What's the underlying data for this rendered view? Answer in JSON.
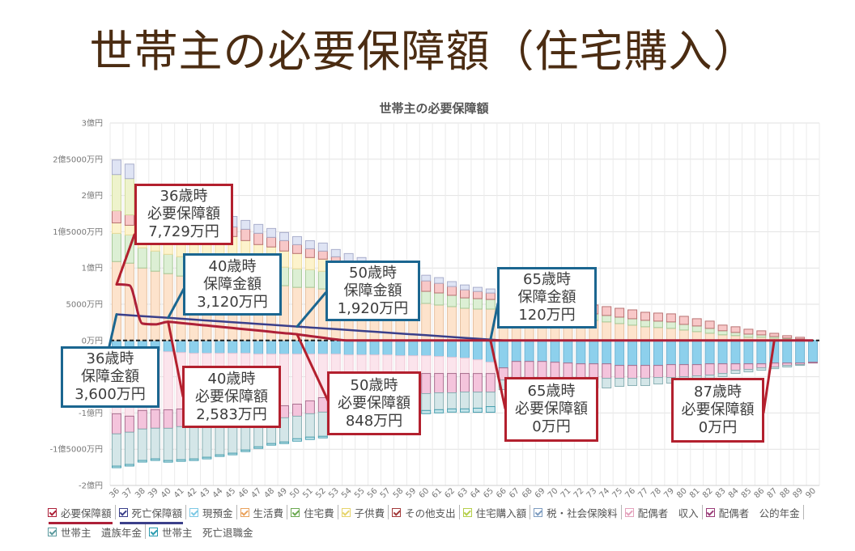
{
  "page": {
    "title": "世帯主の必要保障額（住宅購入）"
  },
  "chart_data": {
    "type": "bar",
    "stacked": true,
    "title": "世帯主の必要保障額",
    "xlabel": "",
    "ylabel": "",
    "unit": "万円",
    "ylim": [
      -20000,
      30000
    ],
    "tick_interval": 5000,
    "grid": true,
    "legend": {
      "placement": "bottom-left"
    },
    "y_ticks": [
      {
        "value": 30000,
        "label": "3億円"
      },
      {
        "value": 25000,
        "label": "2億5000万円"
      },
      {
        "value": 20000,
        "label": "2億円"
      },
      {
        "value": 15000,
        "label": "1億5000万円"
      },
      {
        "value": 10000,
        "label": "1億円"
      },
      {
        "value": 5000,
        "label": "5000万円"
      },
      {
        "value": 0,
        "label": "0万円"
      },
      {
        "value": -10000,
        "label": "-1億円"
      },
      {
        "value": -15000,
        "label": "-1億5000万円"
      },
      {
        "value": -20000,
        "label": "-2億円"
      }
    ],
    "categories": [
      "36",
      "37",
      "38",
      "39",
      "40",
      "41",
      "42",
      "43",
      "44",
      "45",
      "46",
      "47",
      "48",
      "49",
      "50",
      "51",
      "52",
      "53",
      "54",
      "55",
      "56",
      "57",
      "58",
      "59",
      "60",
      "61",
      "62",
      "63",
      "64",
      "65",
      "66",
      "67",
      "68",
      "69",
      "70",
      "71",
      "72",
      "73",
      "74",
      "75",
      "76",
      "77",
      "78",
      "79",
      "80",
      "81",
      "82",
      "83",
      "84",
      "85",
      "86",
      "87",
      "88",
      "89",
      "90"
    ],
    "series": [
      {
        "name": "必要保障額",
        "kind": "line",
        "smooth": true,
        "color": "#ad2038",
        "values": [
          7729,
          7600,
          2330,
          2220,
          2583,
          2410,
          2240,
          2060,
          1890,
          1720,
          1540,
          1370,
          1190,
          1020,
          848,
          600,
          380,
          150,
          0,
          0,
          0,
          0,
          0,
          0,
          0,
          0,
          0,
          0,
          0,
          0,
          0,
          0,
          0,
          0,
          0,
          0,
          0,
          0,
          0,
          0,
          0,
          0,
          0,
          0,
          0,
          0,
          0,
          0,
          0,
          0,
          0,
          0,
          0,
          0,
          0
        ]
      },
      {
        "name": "死亡保障額",
        "kind": "line",
        "smooth": false,
        "color": "#3a3f8a",
        "values": [
          3600,
          3480,
          3360,
          3240,
          3120,
          3000,
          2880,
          2760,
          2640,
          2520,
          2400,
          2280,
          2160,
          2040,
          1920,
          1800,
          1680,
          1560,
          1440,
          1320,
          1200,
          1080,
          960,
          840,
          720,
          600,
          480,
          360,
          240,
          120,
          0,
          0,
          0,
          0,
          0,
          0,
          0,
          0,
          0,
          0,
          0,
          0,
          0,
          0,
          0,
          0,
          0,
          0,
          0,
          0,
          0,
          0,
          0,
          0,
          0
        ]
      },
      {
        "name": "現預金",
        "kind": "bar",
        "color": "#7cc8e4",
        "fill": "#8dd0ec",
        "stroke": "#72b4d2",
        "values": [
          -1110,
          -1220,
          -1330,
          -1440,
          -1560,
          -1670,
          -1780,
          -1780,
          -1780,
          -1780,
          -1780,
          -1890,
          -1890,
          -1890,
          -1890,
          -1890,
          -1890,
          -1890,
          -2000,
          -2000,
          -2000,
          -2000,
          -2110,
          -2110,
          -2110,
          -2220,
          -2330,
          -2440,
          -2670,
          -3000,
          -3780,
          -2890,
          -2890,
          -2890,
          -3000,
          -3110,
          -3220,
          -3220,
          -3220,
          -3440,
          -3440,
          -3440,
          -3440,
          -3330,
          -3330,
          -3330,
          -3220,
          -3220,
          -3220,
          -3220,
          -3220,
          -3110,
          -3110,
          -3110,
          -3000
        ]
      },
      {
        "name": "生活費",
        "kind": "bar",
        "color": "#e9a15a",
        "fill": "#fde3cc",
        "stroke": "#e6c0a0",
        "values": [
          10890,
          10670,
          10000,
          9560,
          9220,
          8890,
          8440,
          8220,
          8110,
          7890,
          7890,
          7670,
          7670,
          7560,
          7330,
          7330,
          7110,
          6670,
          6440,
          6330,
          6110,
          6110,
          5890,
          5440,
          5110,
          4890,
          4670,
          4440,
          4330,
          4330,
          4220,
          4110,
          3890,
          3780,
          3440,
          3220,
          3000,
          2780,
          2560,
          2330,
          2110,
          1890,
          1780,
          1670,
          1440,
          1220,
          1000,
          780,
          670,
          440,
          440,
          330,
          220,
          220,
          0
        ]
      },
      {
        "name": "住宅費",
        "kind": "bar",
        "color": "#6aa84f",
        "fill": "#dcefd4",
        "stroke": "#a6c896",
        "values": [
          3890,
          3890,
          2780,
          2780,
          2670,
          2670,
          2670,
          2670,
          2560,
          2560,
          2560,
          2670,
          2670,
          2560,
          2560,
          2440,
          2440,
          2330,
          2330,
          2220,
          2110,
          2000,
          1890,
          1780,
          1670,
          1670,
          1560,
          1440,
          1440,
          1330,
          1220,
          1110,
          1110,
          1000,
          1000,
          1000,
          890,
          890,
          890,
          890,
          890,
          890,
          890,
          890,
          780,
          780,
          670,
          560,
          440,
          440,
          330,
          220,
          110,
          0,
          0
        ]
      },
      {
        "name": "子供費",
        "kind": "bar",
        "color": "#e6d46a",
        "fill": "#fdf3cc",
        "stroke": "#eedc9c",
        "values": [
          1440,
          1330,
          3330,
          3440,
          3560,
          3670,
          3780,
          3890,
          3890,
          3890,
          3330,
          2890,
          2560,
          2220,
          2110,
          1670,
          1670,
          1330,
          1000,
          670,
          440,
          220,
          110,
          0,
          0,
          0,
          0,
          0,
          0,
          0,
          0,
          0,
          0,
          0,
          0,
          0,
          0,
          0,
          0,
          0,
          0,
          0,
          0,
          0,
          0,
          0,
          0,
          0,
          0,
          0,
          0,
          0,
          0,
          0,
          0
        ]
      },
      {
        "name": "その他支出",
        "kind": "bar",
        "color": "#a33a3a",
        "fill": "#f8c8c8",
        "stroke": "#b87272",
        "values": [
          1670,
          1440,
          1440,
          1440,
          1440,
          1440,
          1440,
          1330,
          1330,
          1330,
          1560,
          1560,
          1330,
          1440,
          1220,
          1220,
          1110,
          1220,
          1220,
          1220,
          1330,
          1330,
          1330,
          1440,
          1440,
          1330,
          1220,
          1110,
          1000,
          890,
          1330,
          1330,
          1330,
          1330,
          1330,
          1220,
          1220,
          1220,
          1220,
          1220,
          1220,
          1110,
          1110,
          1110,
          1110,
          1000,
          1000,
          780,
          780,
          670,
          560,
          440,
          330,
          220,
          0
        ]
      },
      {
        "name": "住宅購入額",
        "kind": "bar",
        "color": "#b5cf4a",
        "fill": "#eef3cc",
        "stroke": "#cfdc9a",
        "values": [
          5000,
          5000,
          0,
          0,
          0,
          0,
          0,
          0,
          0,
          0,
          0,
          0,
          0,
          0,
          0,
          0,
          0,
          0,
          0,
          0,
          0,
          0,
          0,
          0,
          0,
          0,
          0,
          0,
          0,
          0,
          0,
          0,
          0,
          0,
          0,
          0,
          0,
          0,
          0,
          0,
          0,
          0,
          0,
          0,
          0,
          0,
          0,
          0,
          0,
          0,
          0,
          0,
          0,
          0,
          0
        ]
      },
      {
        "name": "税・社会保険料",
        "kind": "bar",
        "color": "#7d9cc0",
        "fill": "#dfe4f4",
        "stroke": "#a9aecb",
        "values": [
          2000,
          2000,
          1440,
          1440,
          1440,
          1440,
          1440,
          1440,
          1440,
          1440,
          1220,
          1220,
          1220,
          1110,
          1110,
          1110,
          1110,
          1000,
          1000,
          1000,
          1000,
          890,
          890,
          890,
          780,
          780,
          670,
          670,
          560,
          560,
          0,
          0,
          0,
          0,
          0,
          0,
          0,
          0,
          0,
          0,
          0,
          0,
          0,
          0,
          0,
          0,
          0,
          0,
          0,
          0,
          0,
          0,
          0,
          0,
          0
        ]
      },
      {
        "name": "配偶者　収入",
        "kind": "bar",
        "color": "#e4a2bc",
        "fill": "#fbe4ec",
        "stroke": "#f0c8d6",
        "values": [
          -9000,
          -9220,
          -8330,
          -8110,
          -8000,
          -7780,
          -7670,
          -7560,
          -7560,
          -7440,
          -7330,
          -7220,
          -7110,
          -7110,
          -6890,
          -6440,
          -6000,
          -5440,
          -4780,
          -4330,
          -3890,
          -3440,
          -3000,
          -2670,
          -2440,
          -2330,
          -2220,
          -2110,
          -1890,
          -1560,
          0,
          0,
          0,
          0,
          0,
          0,
          0,
          0,
          0,
          0,
          0,
          0,
          0,
          0,
          0,
          0,
          0,
          0,
          0,
          0,
          0,
          0,
          0,
          0,
          0
        ]
      },
      {
        "name": "配偶者　公的年金",
        "kind": "bar",
        "color": "#9a3c78",
        "fill": "#f4c4dc",
        "stroke": "#a86e8e",
        "values": [
          -2780,
          -2220,
          -2560,
          -2560,
          -2560,
          -2440,
          -2330,
          -2330,
          -2220,
          -2220,
          -2110,
          -1890,
          -1780,
          -1670,
          -1670,
          -1780,
          -2000,
          -2110,
          -2220,
          -2330,
          -2440,
          -2560,
          -2560,
          -2670,
          -2780,
          -2670,
          -2670,
          -2560,
          -2560,
          -2560,
          -1670,
          -2330,
          -2330,
          -2330,
          -2220,
          -2110,
          -2000,
          -2110,
          -2000,
          -1780,
          -1780,
          -1780,
          -1670,
          -1780,
          -1670,
          -1560,
          -1560,
          -1330,
          -890,
          -780,
          -560,
          -560,
          -330,
          -220,
          -110
        ]
      },
      {
        "name": "世帯主　遺族年金",
        "kind": "bar",
        "color": "#5b9a9e",
        "fill": "#d4e6e8",
        "stroke": "#8ab0b4",
        "values": [
          -4440,
          -4440,
          -4330,
          -4220,
          -4440,
          -4560,
          -4560,
          -4440,
          -4220,
          -4110,
          -3890,
          -3670,
          -3440,
          -3330,
          -3110,
          -3220,
          -3330,
          -3220,
          -3110,
          -2890,
          -2670,
          -2560,
          -2560,
          -2440,
          -2330,
          -2330,
          -2220,
          -2330,
          -2220,
          -2000,
          -1330,
          -1440,
          -1440,
          -1440,
          -1330,
          -1330,
          -1330,
          -1220,
          -1330,
          -1110,
          -1000,
          -1000,
          -890,
          -780,
          -670,
          -560,
          -440,
          -440,
          -440,
          -330,
          -330,
          -220,
          -220,
          -110,
          0
        ]
      },
      {
        "name": "世帯主　死亡退職金",
        "kind": "bar",
        "color": "#2a9cb0",
        "fill": "#c4e4ea",
        "stroke": "#4aa0b0",
        "values": [
          -220,
          -220,
          -220,
          -220,
          -220,
          -220,
          -220,
          -220,
          -220,
          -220,
          -220,
          -220,
          -220,
          -220,
          -330,
          -330,
          -220,
          -330,
          -330,
          -330,
          -440,
          -440,
          -440,
          -440,
          -440,
          -440,
          -440,
          -440,
          -560,
          -780,
          0,
          0,
          0,
          0,
          0,
          0,
          0,
          0,
          0,
          0,
          0,
          0,
          0,
          0,
          0,
          0,
          0,
          0,
          0,
          0,
          0,
          0,
          0,
          0,
          0
        ]
      }
    ],
    "annotations": [
      {
        "age": "36",
        "series": "必要保障額",
        "value": 7729,
        "border_color": "#b3202e",
        "lines": [
          "36歳時",
          "必要保障額",
          "7,729万円"
        ]
      },
      {
        "age": "40",
        "series": "死亡保障額",
        "value": 3120,
        "border_color": "#1b6690",
        "lines": [
          "40歳時",
          "保障金額",
          "3,120万円"
        ]
      },
      {
        "age": "36",
        "series": "死亡保障額",
        "value": 3600,
        "border_color": "#1b6690",
        "lines": [
          "36歳時",
          "保障金額",
          "3,600万円"
        ]
      },
      {
        "age": "40",
        "series": "必要保障額",
        "value": 2583,
        "border_color": "#b3202e",
        "lines": [
          "40歳時",
          "必要保障額",
          "2,583万円"
        ]
      },
      {
        "age": "50",
        "series": "死亡保障額",
        "value": 1920,
        "border_color": "#1b6690",
        "lines": [
          "50歳時",
          "保障金額",
          "1,920万円"
        ]
      },
      {
        "age": "50",
        "series": "必要保障額",
        "value": 848,
        "border_color": "#b3202e",
        "lines": [
          "50歳時",
          "必要保障額",
          "848万円"
        ]
      },
      {
        "age": "65",
        "series": "死亡保障額",
        "value": 120,
        "border_color": "#1b6690",
        "lines": [
          "65歳時",
          "保障金額",
          "120万円"
        ]
      },
      {
        "age": "65",
        "series": "必要保障額",
        "value": 0,
        "border_color": "#b3202e",
        "lines": [
          "65歳時",
          "必要保障額",
          "0万円"
        ]
      },
      {
        "age": "87",
        "series": "必要保障額",
        "value": 0,
        "border_color": "#b3202e",
        "lines": [
          "87歳時",
          "必要保障額",
          "0万円"
        ]
      }
    ]
  }
}
